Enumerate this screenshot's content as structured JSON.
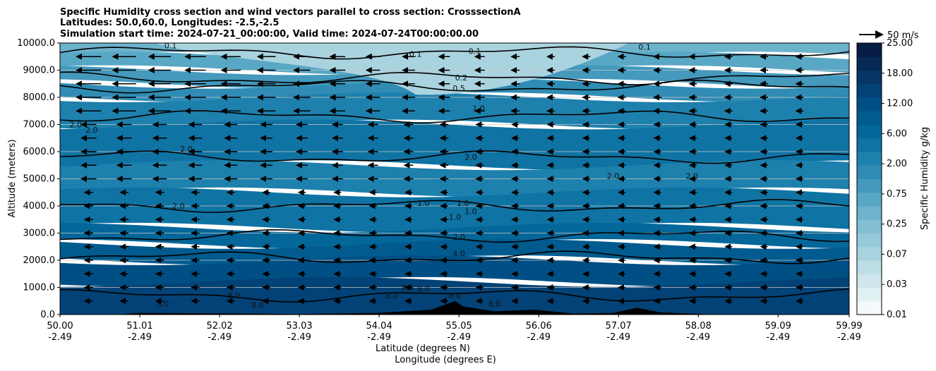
{
  "chart_data": {
    "type": "heatmap",
    "subtype": "filled-contour cross section with wind vectors",
    "title_lines": [
      "Specific Humidity cross section and wind vectors parallel to cross section: CrosssectionA",
      "Latitudes: 50.0,60.0, Longitudes: -2.5,-2.5",
      "Simulation start time: 2024-07-21_00:00:00, Valid time: 2024-07-24T00:00:00.00"
    ],
    "xlabel_lines": [
      "Latitude (degrees N)",
      "Longitude (degrees E)"
    ],
    "ylabel": "Altitude (meters)",
    "xlim": [
      50.0,
      59.99
    ],
    "ylim": [
      0,
      10000
    ],
    "x_ticks": [
      {
        "lat": "50.00",
        "lon": "-2.49",
        "value": 50.0
      },
      {
        "lat": "51.01",
        "lon": "-2.49",
        "value": 51.01
      },
      {
        "lat": "52.02",
        "lon": "-2.49",
        "value": 52.02
      },
      {
        "lat": "53.03",
        "lon": "-2.49",
        "value": 53.03
      },
      {
        "lat": "54.04",
        "lon": "-2.49",
        "value": 54.04
      },
      {
        "lat": "55.05",
        "lon": "-2.49",
        "value": 55.05
      },
      {
        "lat": "56.06",
        "lon": "-2.49",
        "value": 56.06
      },
      {
        "lat": "57.07",
        "lon": "-2.49",
        "value": 57.07
      },
      {
        "lat": "58.08",
        "lon": "-2.49",
        "value": 58.08
      },
      {
        "lat": "59.09",
        "lon": "-2.49",
        "value": 59.09
      },
      {
        "lat": "59.99",
        "lon": "-2.49",
        "value": 59.99
      }
    ],
    "y_ticks": [
      {
        "label": "0.0",
        "value": 0
      },
      {
        "label": "1000.0",
        "value": 1000
      },
      {
        "label": "2000.0",
        "value": 2000
      },
      {
        "label": "3000.0",
        "value": 3000
      },
      {
        "label": "4000.0",
        "value": 4000
      },
      {
        "label": "5000.0",
        "value": 5000
      },
      {
        "label": "6000.0",
        "value": 6000
      },
      {
        "label": "7000.0",
        "value": 7000
      },
      {
        "label": "8000.0",
        "value": 8000
      },
      {
        "label": "9000.0",
        "value": 9000
      },
      {
        "label": "10000.0",
        "value": 10000
      }
    ],
    "grid": "horizontal",
    "colorbar": {
      "label": "Specific Humidity g/kg",
      "ticks": [
        "0.01",
        "0.03",
        "0.07",
        "0.25",
        "0.75",
        "2.00",
        "6.00",
        "12.00",
        "18.00",
        "25.00"
      ],
      "levels": 20,
      "colors_light_to_dark": [
        "#f4fafb",
        "#e1f0f3",
        "#cfe6ec",
        "#bcdde6",
        "#a9d3df",
        "#96c9d9",
        "#82bfd2",
        "#6db3cb",
        "#58a7c4",
        "#4499bd",
        "#308cb4",
        "#1e80ac",
        "#0f73a3",
        "#056799",
        "#015b8f",
        "#004f84",
        "#034276",
        "#063566",
        "#072955",
        "#071d46"
      ]
    },
    "contour_levels": [
      {
        "label": "0.1",
        "altitude_m": 9650
      },
      {
        "label": "0.2",
        "altitude_m": 8700
      },
      {
        "label": "0.5",
        "altitude_m": 8400
      },
      {
        "label": "1.0",
        "altitude_m": 7300
      },
      {
        "label": "2.0",
        "altitude_m": 5800
      },
      {
        "label": "1.0",
        "altitude_m": 4000
      },
      {
        "label": "2.0",
        "altitude_m": 2900
      },
      {
        "label": "4.0",
        "altitude_m": 2100
      },
      {
        "label": "8.0",
        "altitude_m": 700
      }
    ],
    "contour_labels": [
      {
        "text": "0.1",
        "lat": 57.4,
        "alt": 9750
      },
      {
        "text": "0.1",
        "lat": 51.4,
        "alt": 9800
      },
      {
        "text": "0.1",
        "lat": 54.5,
        "alt": 9500
      },
      {
        "text": "0.1",
        "lat": 55.25,
        "alt": 9600
      },
      {
        "text": "0.2",
        "lat": 55.08,
        "alt": 8620
      },
      {
        "text": "0.5",
        "lat": 55.05,
        "alt": 8230
      },
      {
        "text": "1.0",
        "lat": 55.3,
        "alt": 7500
      },
      {
        "text": "2.0",
        "lat": 50.2,
        "alt": 6900
      },
      {
        "text": "2.0",
        "lat": 50.4,
        "alt": 6700
      },
      {
        "text": "2.0",
        "lat": 51.6,
        "alt": 6000
      },
      {
        "text": "2.0",
        "lat": 55.2,
        "alt": 5700
      },
      {
        "text": "2.0",
        "lat": 57.0,
        "alt": 5000
      },
      {
        "text": "2.0",
        "lat": 58.0,
        "alt": 5000
      },
      {
        "text": "2.0",
        "lat": 51.5,
        "alt": 3900
      },
      {
        "text": "1.0",
        "lat": 54.6,
        "alt": 4000
      },
      {
        "text": "1.0",
        "lat": 55.2,
        "alt": 3700
      },
      {
        "text": "1.0",
        "lat": 55.1,
        "alt": 4000
      },
      {
        "text": "1.0",
        "lat": 55.0,
        "alt": 3500
      },
      {
        "text": "2.0",
        "lat": 55.05,
        "alt": 2750
      },
      {
        "text": "4.0",
        "lat": 55.05,
        "alt": 2150
      },
      {
        "text": "8.0",
        "lat": 52.2,
        "alt": 600
      },
      {
        "text": "8.0",
        "lat": 52.5,
        "alt": 250
      },
      {
        "text": "8.0",
        "lat": 51.3,
        "alt": 300
      },
      {
        "text": "8.0",
        "lat": 54.2,
        "alt": 600
      },
      {
        "text": "8.0",
        "lat": 54.4,
        "alt": 900
      },
      {
        "text": "8.0",
        "lat": 54.6,
        "alt": 850
      },
      {
        "text": "8.0",
        "lat": 55.0,
        "alt": 600
      },
      {
        "text": "8.0",
        "lat": 55.5,
        "alt": 300
      }
    ],
    "wind_vectors": {
      "reference": "50 m/s",
      "direction": "westward (pointing toward lower latitude)",
      "note": "strongest near 8000-10000 m on the southern half, weakening downward"
    },
    "terrain": "black orography silhouette near 0 m, highest near 55.0-55.1 N"
  }
}
